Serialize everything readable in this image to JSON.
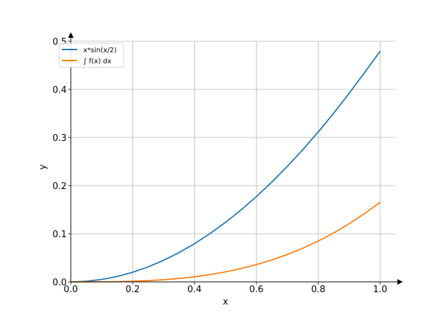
{
  "chart_data": {
    "type": "line",
    "xlabel": "x",
    "ylabel": "y",
    "xlim": [
      0.0,
      1.0
    ],
    "ylim": [
      0.0,
      0.5
    ],
    "xticks": [
      "0.0",
      "0.2",
      "0.4",
      "0.6",
      "0.8",
      "1.0"
    ],
    "yticks": [
      "0.0",
      "0.1",
      "0.2",
      "0.3",
      "0.4",
      "0.5"
    ],
    "grid": true,
    "legend_position": "top-left",
    "x": [
      0.0,
      0.05,
      0.1,
      0.15,
      0.2,
      0.25,
      0.3,
      0.35,
      0.4,
      0.45,
      0.5,
      0.55,
      0.6,
      0.65,
      0.7,
      0.75,
      0.8,
      0.85,
      0.9,
      0.95,
      1.0
    ],
    "series": [
      {
        "name": "x*sin(x/2)",
        "color": "#1f77b4",
        "values": [
          0.0,
          0.00125,
          0.005,
          0.01124,
          0.01997,
          0.03117,
          0.04484,
          0.06095,
          0.07947,
          0.10039,
          0.1237,
          0.14935,
          0.17732,
          0.20759,
          0.24011,
          0.27486,
          0.31178,
          0.35085,
          0.39202,
          0.43524,
          0.47943
        ]
      },
      {
        "name": "∫ f(x) dx",
        "color": "#ff7f0e",
        "values": [
          0.0,
          2e-05,
          0.00017,
          0.00056,
          0.00133,
          0.0026,
          0.00449,
          0.00713,
          0.01063,
          0.01514,
          0.02076,
          0.02763,
          0.03587,
          0.04559,
          0.05694,
          0.07003,
          0.08497,
          0.10188,
          0.12089,
          0.14206,
          0.16551
        ]
      }
    ]
  }
}
